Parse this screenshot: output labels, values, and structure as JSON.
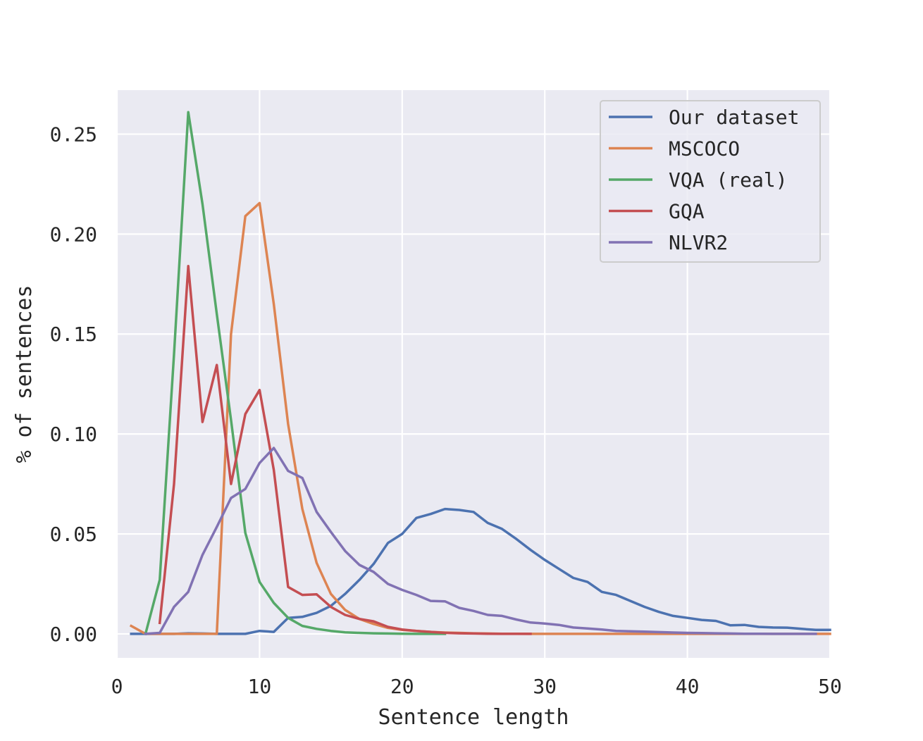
{
  "chart_data": {
    "type": "line",
    "xlabel": "Sentence length",
    "ylabel": "% of sentences",
    "xlim": [
      0,
      50
    ],
    "ylim": [
      -0.012,
      0.272
    ],
    "xticks": [
      "0",
      "10",
      "20",
      "30",
      "40",
      "50"
    ],
    "yticks": [
      "0.00",
      "0.05",
      "0.10",
      "0.15",
      "0.20",
      "0.25"
    ],
    "grid": true,
    "legend_position": "top-right",
    "series": [
      {
        "name": "Our dataset",
        "color": "#4c72b0",
        "x": [
          1,
          2,
          3,
          4,
          5,
          6,
          7,
          8,
          9,
          10,
          11,
          12,
          13,
          14,
          15,
          16,
          17,
          18,
          19,
          20,
          21,
          22,
          23,
          24,
          25,
          26,
          27,
          28,
          29,
          30,
          31,
          32,
          33,
          34,
          35,
          36,
          37,
          38,
          39,
          40,
          41,
          42,
          43,
          44,
          45,
          46,
          47,
          48,
          49,
          50
        ],
        "y": [
          0,
          0,
          0,
          0,
          0.0003,
          0.0002,
          0,
          0,
          0,
          0.0015,
          0.001,
          0.008,
          0.0085,
          0.0105,
          0.014,
          0.02,
          0.027,
          0.035,
          0.0455,
          0.05,
          0.058,
          0.06,
          0.0625,
          0.062,
          0.061,
          0.0555,
          0.0525,
          0.0475,
          0.042,
          0.037,
          0.0325,
          0.028,
          0.026,
          0.021,
          0.0195,
          0.0165,
          0.0135,
          0.011,
          0.009,
          0.008,
          0.007,
          0.0065,
          0.0043,
          0.0045,
          0.0035,
          0.0032,
          0.0031,
          0.0025,
          0.002,
          0.002
        ]
      },
      {
        "name": "MSCOCO",
        "color": "#dd8452",
        "x": [
          1,
          2,
          3,
          4,
          5,
          6,
          7,
          8,
          9,
          10,
          11,
          12,
          13,
          14,
          15,
          16,
          17,
          18,
          19,
          20,
          21,
          22,
          23,
          24,
          25,
          26,
          27,
          28,
          29,
          30,
          35,
          40,
          45,
          50
        ],
        "y": [
          0.004,
          0,
          0,
          0,
          0,
          0,
          0,
          0.15,
          0.209,
          0.2155,
          0.165,
          0.105,
          0.0625,
          0.0355,
          0.02,
          0.012,
          0.0075,
          0.005,
          0.003,
          0.002,
          0.0015,
          0.001,
          0.0007,
          0.0005,
          0.0003,
          0.0002,
          0.0001,
          0.0001,
          0,
          0,
          0,
          0,
          0,
          0
        ]
      },
      {
        "name": "VQA (real)",
        "color": "#55a868",
        "x": [
          2,
          3,
          4,
          5,
          6,
          7,
          8,
          9,
          10,
          11,
          12,
          13,
          14,
          15,
          16,
          17,
          18,
          19,
          20,
          21,
          22,
          23
        ],
        "y": [
          0,
          0.027,
          0.14,
          0.261,
          0.215,
          0.16,
          0.107,
          0.0505,
          0.026,
          0.0155,
          0.008,
          0.004,
          0.0025,
          0.0015,
          0.0008,
          0.0005,
          0.0003,
          0.0002,
          0.0001,
          0,
          0,
          0
        ]
      },
      {
        "name": "GQA",
        "color": "#c44e52",
        "x": [
          3,
          4,
          5,
          6,
          7,
          8,
          9,
          10,
          11,
          12,
          13,
          14,
          15,
          16,
          17,
          18,
          19,
          20,
          21,
          22,
          23,
          24,
          25,
          26,
          27,
          28,
          29
        ],
        "y": [
          0.0055,
          0.075,
          0.184,
          0.106,
          0.1345,
          0.075,
          0.11,
          0.122,
          0.082,
          0.0235,
          0.0195,
          0.0198,
          0.0135,
          0.0095,
          0.0075,
          0.0063,
          0.0035,
          0.0022,
          0.0015,
          0.001,
          0.0005,
          0.0003,
          0.0002,
          0.0001,
          0,
          0,
          0
        ]
      },
      {
        "name": "NLVR2",
        "color": "#8172b3",
        "x": [
          2,
          3,
          4,
          5,
          6,
          7,
          8,
          9,
          10,
          11,
          12,
          13,
          14,
          15,
          16,
          17,
          18,
          19,
          20,
          21,
          22,
          23,
          24,
          25,
          26,
          27,
          28,
          29,
          30,
          31,
          32,
          33,
          34,
          35,
          36,
          37,
          38,
          39,
          40,
          41,
          42,
          43,
          44,
          45,
          46,
          47,
          48,
          49
        ],
        "y": [
          0,
          0.0005,
          0.0135,
          0.021,
          0.0395,
          0.0535,
          0.068,
          0.0725,
          0.0855,
          0.093,
          0.0815,
          0.078,
          0.061,
          0.051,
          0.0415,
          0.0345,
          0.031,
          0.025,
          0.022,
          0.0195,
          0.0165,
          0.0163,
          0.013,
          0.0115,
          0.0095,
          0.009,
          0.0072,
          0.0057,
          0.0052,
          0.0045,
          0.0032,
          0.0027,
          0.0022,
          0.0015,
          0.0013,
          0.0011,
          0.0009,
          0.0007,
          0.0005,
          0.0004,
          0.0003,
          0.0002,
          0.0001,
          0.0001,
          0,
          0,
          0,
          0
        ]
      }
    ]
  },
  "colors": {
    "plot_background": "#eaeaf2",
    "grid": "#ffffff",
    "text": "#262626"
  }
}
